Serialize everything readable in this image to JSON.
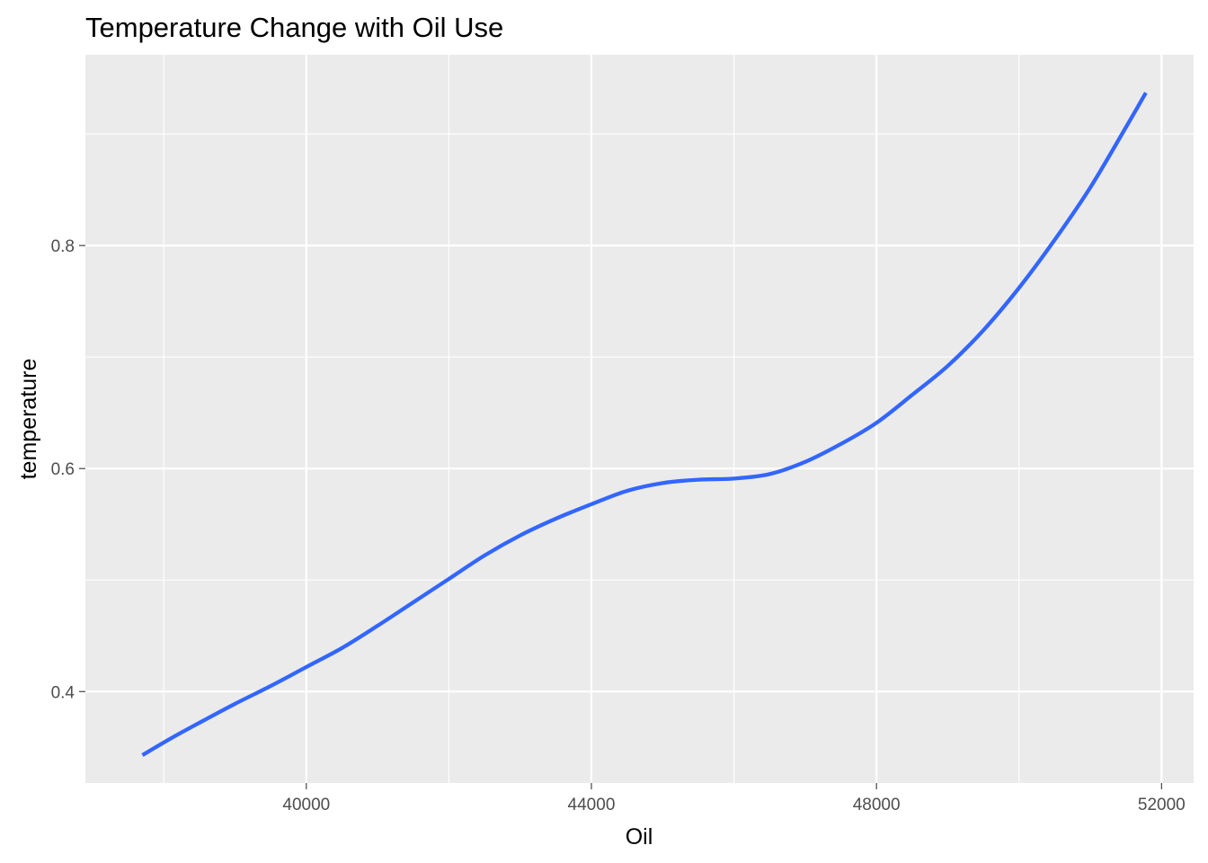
{
  "chart_data": {
    "type": "line",
    "title": "Temperature Change with Oil Use",
    "xlabel": "Oil",
    "ylabel": "temperature",
    "xlim": [
      36900,
      52450
    ],
    "ylim": [
      0.318,
      0.971
    ],
    "x_ticks": [
      40000,
      44000,
      48000,
      52000
    ],
    "x_tick_labels": [
      "40000",
      "44000",
      "48000",
      "52000"
    ],
    "x_minor_ticks": [
      38000,
      42000,
      46000,
      50000
    ],
    "y_ticks": [
      0.4,
      0.6,
      0.8
    ],
    "y_tick_labels": [
      "0.4",
      "0.6",
      "0.8"
    ],
    "y_minor_ticks": [
      0.3,
      0.5,
      0.7,
      0.9
    ],
    "grid": true,
    "legend": "none",
    "colors": {
      "panel_background": "#EBEBEB",
      "grid": "#FFFFFF",
      "line": "#3366FF",
      "tick_text": "#4D4D4D",
      "tick_mark": "#333333"
    },
    "series": [
      {
        "x": [
          37700,
          38100,
          38500,
          39000,
          39500,
          40000,
          40500,
          41000,
          41500,
          42000,
          42500,
          43000,
          43500,
          44000,
          44500,
          45000,
          45500,
          46000,
          46500,
          47000,
          47500,
          48000,
          48500,
          49000,
          49500,
          50000,
          50500,
          51000,
          51500,
          51780
        ],
        "y": [
          0.343,
          0.358,
          0.372,
          0.389,
          0.405,
          0.422,
          0.439,
          0.459,
          0.48,
          0.501,
          0.522,
          0.54,
          0.555,
          0.568,
          0.58,
          0.587,
          0.59,
          0.591,
          0.595,
          0.606,
          0.622,
          0.641,
          0.666,
          0.692,
          0.724,
          0.762,
          0.805,
          0.852,
          0.906,
          0.937
        ]
      }
    ]
  }
}
